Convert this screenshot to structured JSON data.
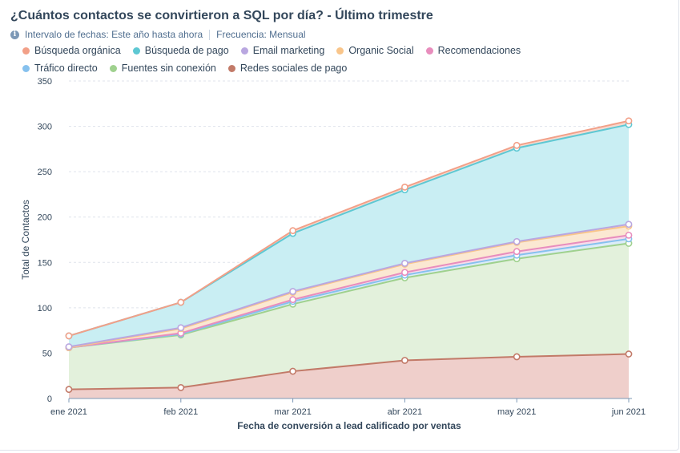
{
  "header": {
    "title": "¿Cuántos contactos se convirtieron a SQL por día? - Último trimestre",
    "date_range": "Intervalo de fechas: Este año hasta ahora",
    "frequency": "Frecuencia: Mensual"
  },
  "chart_data": {
    "type": "area",
    "stacked": true,
    "x": [
      "ene 2021",
      "feb 2021",
      "mar 2021",
      "abr 2021",
      "may 2021",
      "jun 2021"
    ],
    "xlabel": "Fecha de conversión a lead calificado por ventas",
    "ylabel": "Total de Contactos",
    "ylim": [
      0,
      350
    ],
    "yticks": [
      0,
      50,
      100,
      150,
      200,
      250,
      300,
      350
    ],
    "grid": true,
    "legend_position": "top-left",
    "series": [
      {
        "name": "Redes sociales de pago",
        "color": "#c27a68",
        "fill": "#efcfcb",
        "values": [
          10,
          12,
          30,
          42,
          46,
          49
        ]
      },
      {
        "name": "Fuentes sin conexión",
        "color": "#9fd18e",
        "fill": "#e3f1dc",
        "values": [
          46,
          58,
          74,
          91,
          108,
          122
        ]
      },
      {
        "name": "Tráfico directo",
        "color": "#86c1ee",
        "fill": "#dcecf8",
        "values": [
          0,
          1,
          3,
          3,
          4,
          5
        ]
      },
      {
        "name": "Recomendaciones",
        "color": "#e88dbd",
        "fill": "#f8dcea",
        "values": [
          0,
          1,
          2,
          3,
          4,
          4
        ]
      },
      {
        "name": "Organic Social",
        "color": "#f9c58a",
        "fill": "#fbe8d2",
        "values": [
          0,
          5,
          8,
          9,
          10,
          10
        ]
      },
      {
        "name": "Email marketing",
        "color": "#b9a7e0",
        "fill": "#ebe5f6",
        "values": [
          1,
          1,
          1,
          1,
          1,
          2
        ]
      },
      {
        "name": "Búsqueda de pago",
        "color": "#5ec8d3",
        "fill": "#c9eef3",
        "values": [
          12,
          28,
          64,
          81,
          103,
          110
        ]
      },
      {
        "name": "Búsqueda orgánica",
        "color": "#f2a088",
        "fill": "#f7d9cf",
        "values": [
          0,
          0,
          3,
          3,
          3,
          4
        ]
      }
    ]
  },
  "legend": [
    {
      "label": "Búsqueda orgánica",
      "color": "#f2a088"
    },
    {
      "label": "Búsqueda de pago",
      "color": "#5ec8d3"
    },
    {
      "label": "Email marketing",
      "color": "#b9a7e0"
    },
    {
      "label": "Organic Social",
      "color": "#f9c58a"
    },
    {
      "label": "Recomendaciones",
      "color": "#e88dbd"
    },
    {
      "label": "Tráfico directo",
      "color": "#86c1ee"
    },
    {
      "label": "Fuentes sin conexión",
      "color": "#9fd18e"
    },
    {
      "label": "Redes sociales de pago",
      "color": "#c27a68"
    }
  ]
}
